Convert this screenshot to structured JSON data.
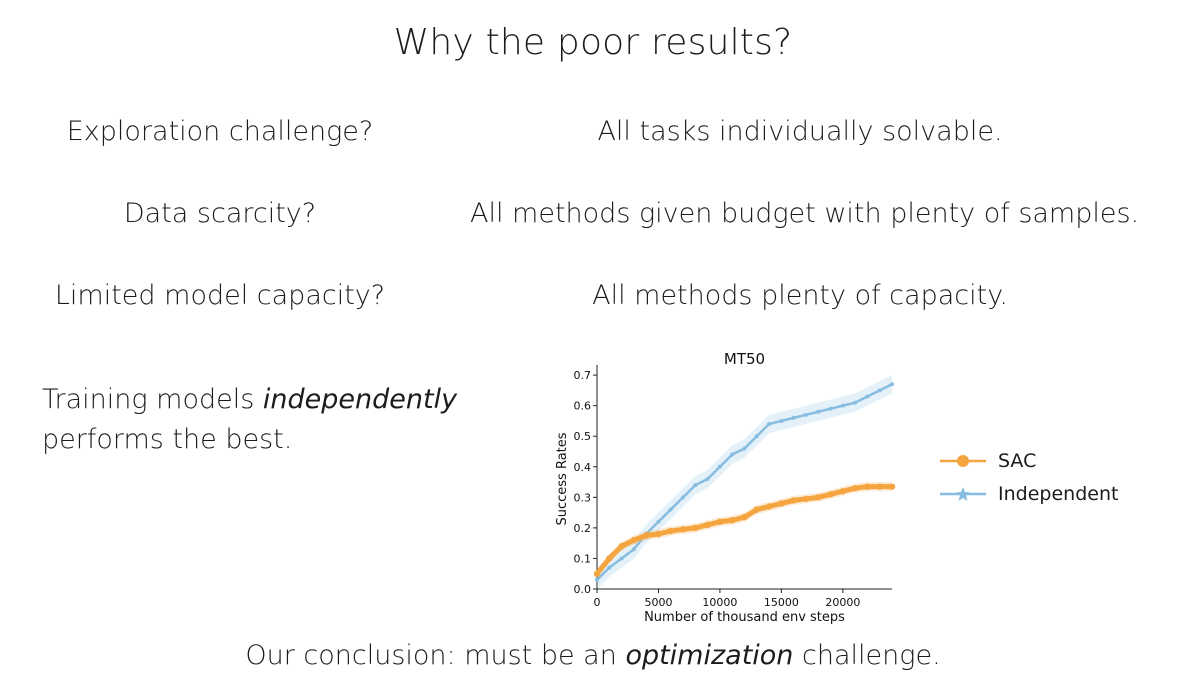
{
  "slide": {
    "title": "Why the poor results?",
    "rows": [
      {
        "question": "Exploration challenge?",
        "answer": "All tasks individually solvable."
      },
      {
        "question": "Data scarcity?",
        "answer": "All methods given budget with plenty of samples."
      },
      {
        "question": "Limited model capacity?",
        "answer": "All methods plenty of capacity."
      }
    ],
    "note_line1_pre": "Training models ",
    "note_line1_em": "independently",
    "note_line2": "performs the best.",
    "conclusion_pre": "Our conclusion: must be an ",
    "conclusion_em": "optimization",
    "conclusion_post": " challenge."
  },
  "chart_data": {
    "type": "line",
    "title": "MT50",
    "xlabel": "Number of thousand env steps",
    "ylabel": "Success Rates",
    "xlim": [
      0,
      24000
    ],
    "ylim": [
      0,
      0.72
    ],
    "xticks": [
      "0",
      "5000",
      "10000",
      "15000",
      "20000"
    ],
    "yticks": [
      "0.0",
      "0.1",
      "0.2",
      "0.3",
      "0.4",
      "0.5",
      "0.6",
      "0.7"
    ],
    "legend_position": "right",
    "series": [
      {
        "name": "SAC",
        "color": "#f4a540",
        "x": [
          0,
          1000,
          2000,
          3000,
          4000,
          5000,
          6000,
          7000,
          8000,
          9000,
          10000,
          11000,
          12000,
          13000,
          14000,
          15000,
          16000,
          17000,
          18000,
          19000,
          20000,
          21000,
          22000,
          23000,
          24000
        ],
        "y": [
          0.05,
          0.1,
          0.14,
          0.16,
          0.175,
          0.18,
          0.19,
          0.195,
          0.2,
          0.21,
          0.22,
          0.225,
          0.235,
          0.26,
          0.27,
          0.28,
          0.29,
          0.295,
          0.3,
          0.31,
          0.32,
          0.33,
          0.335,
          0.335,
          0.335
        ]
      },
      {
        "name": "Independent",
        "color": "#86bde0",
        "x": [
          0,
          1000,
          2000,
          3000,
          4000,
          5000,
          6000,
          7000,
          8000,
          9000,
          10000,
          11000,
          12000,
          13000,
          14000,
          15000,
          16000,
          17000,
          18000,
          19000,
          20000,
          21000,
          22000,
          23000,
          24000
        ],
        "y": [
          0.03,
          0.07,
          0.1,
          0.13,
          0.18,
          0.22,
          0.26,
          0.3,
          0.34,
          0.36,
          0.4,
          0.44,
          0.46,
          0.5,
          0.54,
          0.55,
          0.56,
          0.57,
          0.58,
          0.59,
          0.6,
          0.61,
          0.63,
          0.65,
          0.67
        ]
      }
    ]
  }
}
